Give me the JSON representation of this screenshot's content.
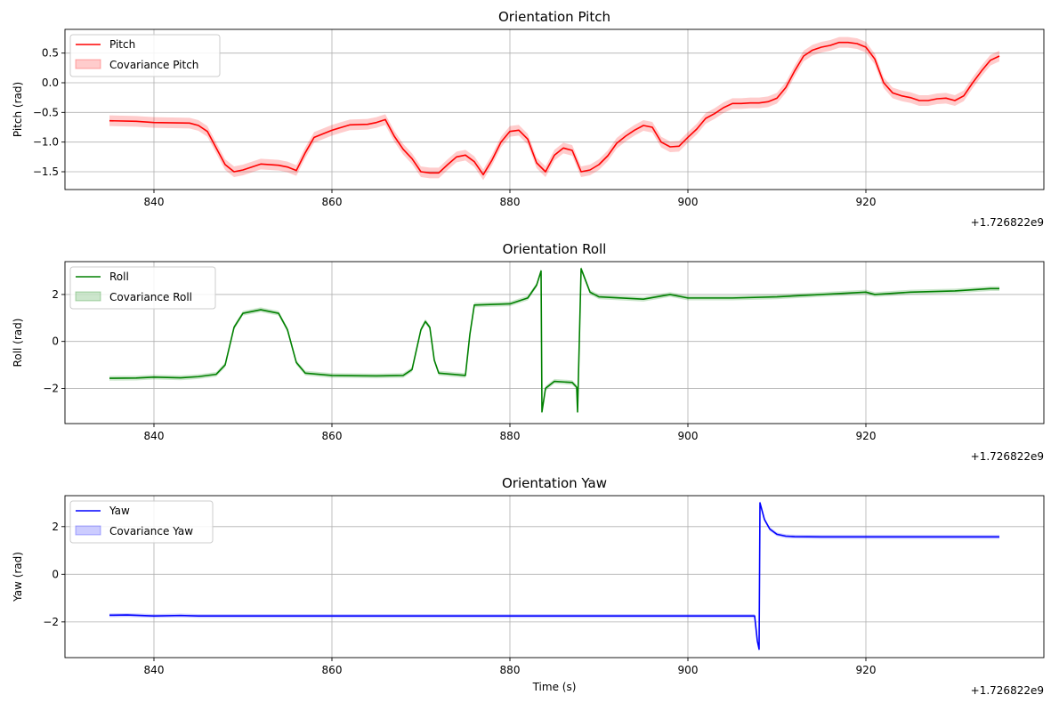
{
  "chart_data": [
    {
      "type": "line",
      "title": "Orientation Pitch",
      "xlabel": "",
      "ylabel": "Pitch (rad)",
      "offset_label": "+1.726822e9",
      "xlim": [
        830,
        940
      ],
      "ylim": [
        -1.8,
        0.9
      ],
      "xticks": [
        840,
        860,
        880,
        900,
        920
      ],
      "xtick_labels": [
        "840",
        "860",
        "880",
        "900",
        "920"
      ],
      "yticks": [
        -1.5,
        -1.0,
        -0.5,
        0.0,
        0.5
      ],
      "ytick_labels": [
        "−1.5",
        "−1.0",
        "−0.5",
        "0.0",
        "0.5"
      ],
      "grid": true,
      "legend_position": "upper-left",
      "series": [
        {
          "name": "Pitch",
          "band_name": "Covariance Pitch",
          "color": "#ff0000",
          "band_color": "#ff0000",
          "band": 0.09,
          "x": [
            835,
            838,
            840,
            844,
            845,
            846,
            847,
            848,
            849,
            850,
            852,
            854,
            855,
            856,
            857,
            858,
            860,
            862,
            864,
            865,
            866,
            867,
            868,
            869,
            870,
            871,
            872,
            873,
            874,
            875,
            876,
            877,
            878,
            879,
            880,
            881,
            882,
            883,
            884,
            885,
            886,
            887,
            888,
            889,
            890,
            891,
            892,
            893,
            894,
            895,
            896,
            897,
            898,
            899,
            900,
            901,
            902,
            903,
            904,
            905,
            906,
            907,
            908,
            909,
            910,
            911,
            912,
            913,
            914,
            915,
            916,
            917,
            918,
            919,
            920,
            921,
            922,
            923,
            924,
            925,
            926,
            927,
            928,
            929,
            930,
            931,
            932,
            933,
            934,
            935
          ],
          "y": [
            -0.64,
            -0.65,
            -0.67,
            -0.68,
            -0.72,
            -0.82,
            -1.1,
            -1.38,
            -1.5,
            -1.47,
            -1.37,
            -1.39,
            -1.42,
            -1.48,
            -1.18,
            -0.92,
            -0.8,
            -0.71,
            -0.7,
            -0.67,
            -0.62,
            -0.9,
            -1.12,
            -1.28,
            -1.5,
            -1.52,
            -1.52,
            -1.38,
            -1.25,
            -1.22,
            -1.33,
            -1.55,
            -1.3,
            -1.0,
            -0.82,
            -0.8,
            -0.95,
            -1.35,
            -1.5,
            -1.22,
            -1.1,
            -1.14,
            -1.5,
            -1.47,
            -1.38,
            -1.23,
            -1.02,
            -0.9,
            -0.8,
            -0.72,
            -0.75,
            -1.0,
            -1.08,
            -1.07,
            -0.92,
            -0.78,
            -0.6,
            -0.52,
            -0.42,
            -0.35,
            -0.35,
            -0.34,
            -0.34,
            -0.32,
            -0.26,
            -0.08,
            0.2,
            0.45,
            0.55,
            0.6,
            0.63,
            0.68,
            0.68,
            0.66,
            0.6,
            0.4,
            0.0,
            -0.17,
            -0.22,
            -0.25,
            -0.3,
            -0.3,
            -0.27,
            -0.26,
            -0.3,
            -0.22,
            0.0,
            0.2,
            0.38,
            0.45
          ]
        }
      ]
    },
    {
      "type": "line",
      "title": "Orientation Roll",
      "xlabel": "",
      "ylabel": "Roll (rad)",
      "offset_label": "+1.726822e9",
      "xlim": [
        830,
        940
      ],
      "ylim": [
        -3.5,
        3.4
      ],
      "xticks": [
        840,
        860,
        880,
        900,
        920
      ],
      "xtick_labels": [
        "840",
        "860",
        "880",
        "900",
        "920"
      ],
      "yticks": [
        -2,
        0,
        2
      ],
      "ytick_labels": [
        "−2",
        "0",
        "2"
      ],
      "grid": true,
      "legend_position": "upper-left",
      "series": [
        {
          "name": "Roll",
          "band_name": "Covariance Roll",
          "color": "#008000",
          "band_color": "#008000",
          "band": 0.1,
          "x": [
            835,
            838,
            840,
            843,
            845,
            847,
            848,
            849,
            850,
            852,
            854,
            855,
            856,
            857,
            860,
            865,
            868,
            869,
            870,
            870.5,
            871,
            871.5,
            872,
            875,
            875.5,
            876,
            880,
            882,
            883,
            883.5,
            883.6,
            884,
            885,
            887,
            887.5,
            887.6,
            888,
            889,
            890,
            895,
            898,
            900,
            905,
            910,
            915,
            920,
            921,
            925,
            930,
            934,
            935
          ],
          "y": [
            -1.57,
            -1.56,
            -1.52,
            -1.55,
            -1.5,
            -1.4,
            -1.0,
            0.6,
            1.2,
            1.35,
            1.2,
            0.5,
            -0.9,
            -1.35,
            -1.45,
            -1.47,
            -1.45,
            -1.2,
            0.5,
            0.85,
            0.6,
            -0.8,
            -1.35,
            -1.45,
            0.3,
            1.55,
            1.6,
            1.85,
            2.4,
            3.0,
            -3.0,
            -2.0,
            -1.7,
            -1.75,
            -1.95,
            -3.0,
            3.1,
            2.1,
            1.9,
            1.8,
            2.0,
            1.85,
            1.85,
            1.9,
            2.0,
            2.1,
            2.0,
            2.1,
            2.15,
            2.25,
            2.25
          ]
        }
      ]
    },
    {
      "type": "line",
      "title": "Orientation Yaw",
      "xlabel": "Time (s)",
      "ylabel": "Yaw (rad)",
      "offset_label": "+1.726822e9",
      "xlim": [
        830,
        940
      ],
      "ylim": [
        -3.5,
        3.3
      ],
      "xticks": [
        840,
        860,
        880,
        900,
        920
      ],
      "xtick_labels": [
        "840",
        "860",
        "880",
        "900",
        "920"
      ],
      "yticks": [
        -2,
        0,
        2
      ],
      "ytick_labels": [
        "−2",
        "0",
        "2"
      ],
      "grid": true,
      "legend_position": "upper-left",
      "series": [
        {
          "name": "Yaw",
          "band_name": "Covariance Yaw",
          "color": "#0000ff",
          "band_color": "#0000ff",
          "band": 0.08,
          "x": [
            835,
            837,
            840,
            843,
            845,
            850,
            860,
            880,
            900,
            907.5,
            907.8,
            908.0,
            908.1,
            908.6,
            909.2,
            910,
            911,
            912,
            915,
            920,
            925,
            930,
            935
          ],
          "y": [
            -1.72,
            -1.71,
            -1.75,
            -1.73,
            -1.75,
            -1.75,
            -1.75,
            -1.75,
            -1.75,
            -1.75,
            -2.8,
            -3.15,
            3.0,
            2.3,
            1.9,
            1.68,
            1.6,
            1.58,
            1.57,
            1.57,
            1.57,
            1.57,
            1.57
          ]
        }
      ]
    }
  ]
}
